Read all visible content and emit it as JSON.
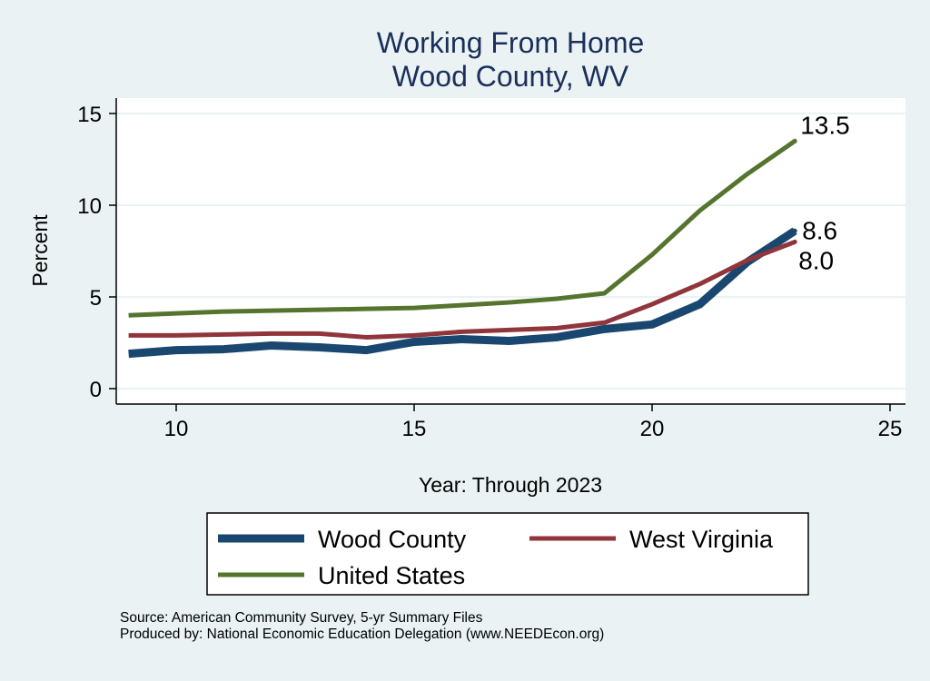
{
  "chart_data": {
    "type": "line",
    "title": "Working From Home",
    "subtitle": "Wood County, WV",
    "xlabel": "Year: Through 2023",
    "ylabel": "Percent",
    "xlim": [
      9,
      25
    ],
    "ylim": [
      0,
      15
    ],
    "xticks": [
      10,
      15,
      20,
      25
    ],
    "yticks": [
      0,
      5,
      10,
      15
    ],
    "grid": true,
    "legend_position": "bottom",
    "x": [
      9,
      10,
      11,
      12,
      13,
      14,
      15,
      16,
      17,
      18,
      19,
      20,
      21,
      22,
      23
    ],
    "series": [
      {
        "name": "Wood County",
        "color": "#1a476f",
        "width": 9,
        "values": [
          1.9,
          2.1,
          2.15,
          2.35,
          2.25,
          2.1,
          2.55,
          2.7,
          2.6,
          2.8,
          3.25,
          3.5,
          4.6,
          6.9,
          8.6
        ],
        "end_label": "8.6"
      },
      {
        "name": "West Virginia",
        "color": "#90353b",
        "width": 5,
        "values": [
          2.9,
          2.9,
          2.95,
          3.0,
          3.0,
          2.8,
          2.9,
          3.1,
          3.2,
          3.3,
          3.6,
          4.6,
          5.7,
          7.0,
          8.0
        ],
        "end_label": "8.0"
      },
      {
        "name": "United States",
        "color": "#55752f",
        "width": 5,
        "values": [
          4.0,
          4.1,
          4.2,
          4.25,
          4.3,
          4.35,
          4.4,
          4.55,
          4.7,
          4.9,
          5.2,
          7.3,
          9.7,
          11.7,
          13.5
        ],
        "end_label": "13.5"
      }
    ]
  },
  "footer": {
    "source": "Source: American Community Survey, 5-yr Summary Files",
    "produced": "Produced by: National Economic Education Delegation (www.NEEDEcon.org)"
  }
}
